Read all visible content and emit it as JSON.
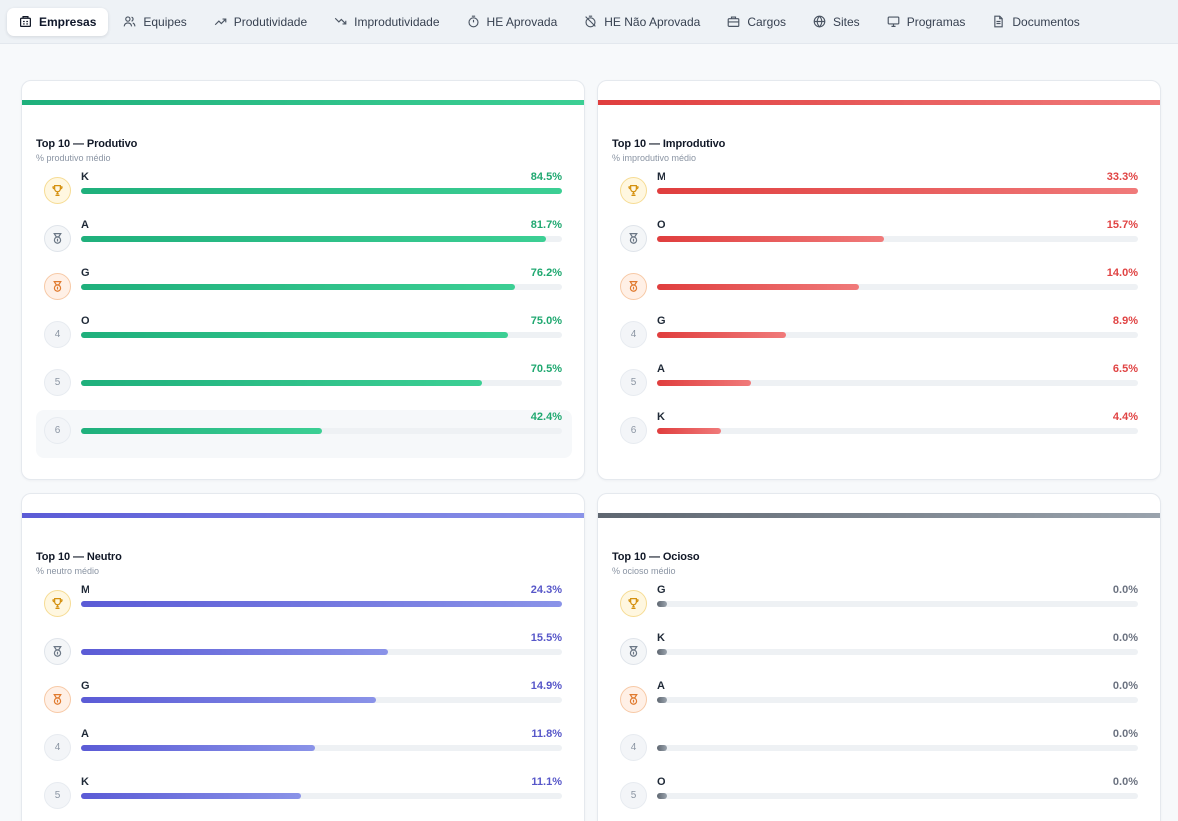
{
  "tabs": [
    {
      "label": "Empresas",
      "icon": "building-icon",
      "active": true
    },
    {
      "label": "Equipes",
      "icon": "users-icon"
    },
    {
      "label": "Produtividade",
      "icon": "trend-up-icon"
    },
    {
      "label": "Improdutividade",
      "icon": "trend-down-icon"
    },
    {
      "label": "HE Aprovada",
      "icon": "stopwatch-icon"
    },
    {
      "label": "HE Não Aprovada",
      "icon": "timer-off-icon"
    },
    {
      "label": "Cargos",
      "icon": "briefcase-icon"
    },
    {
      "label": "Sites",
      "icon": "globe-icon"
    },
    {
      "label": "Programas",
      "icon": "monitor-icon"
    },
    {
      "label": "Documentos",
      "icon": "document-icon"
    }
  ],
  "cards": [
    {
      "id": "produtivo",
      "title": "Top 10 — Produtivo",
      "subtitle": "% produtivo médio",
      "colors": {
        "from": "#1fb07c",
        "to": "#3ccf94",
        "text": "#1fa870"
      },
      "rows": [
        {
          "rank": 1,
          "medal": "gold",
          "name": "K",
          "pct_label": "84.5%",
          "value": 84.5
        },
        {
          "rank": 2,
          "medal": "silver",
          "name": "A",
          "pct_label": "81.7%",
          "value": 81.7
        },
        {
          "rank": 3,
          "medal": "bronze",
          "name": "G",
          "pct_label": "76.2%",
          "value": 76.2
        },
        {
          "rank": 4,
          "rank_label": "4",
          "name": "O",
          "pct_label": "75.0%",
          "value": 75.0
        },
        {
          "rank": 5,
          "rank_label": "5",
          "name": "",
          "pct_label": "70.5%",
          "value": 70.5
        },
        {
          "rank": 6,
          "rank_label": "6",
          "name": "",
          "pct_label": "42.4%",
          "value": 42.4,
          "highlight": true
        }
      ]
    },
    {
      "id": "improdutivo",
      "title": "Top 10 — Improdutivo",
      "subtitle": "% improdutivo médio",
      "colors": {
        "from": "#e03e3e",
        "to": "#f07a7a",
        "text": "#e04343"
      },
      "rows": [
        {
          "rank": 1,
          "medal": "gold",
          "name": "M",
          "pct_label": "33.3%",
          "value": 33.3
        },
        {
          "rank": 2,
          "medal": "silver",
          "name": "O",
          "pct_label": "15.7%",
          "value": 15.7
        },
        {
          "rank": 3,
          "medal": "bronze",
          "name": "",
          "pct_label": "14.0%",
          "value": 14.0
        },
        {
          "rank": 4,
          "rank_label": "4",
          "name": "G",
          "pct_label": "8.9%",
          "value": 8.9
        },
        {
          "rank": 5,
          "rank_label": "5",
          "name": "A",
          "pct_label": "6.5%",
          "value": 6.5
        },
        {
          "rank": 6,
          "rank_label": "6",
          "name": "K",
          "pct_label": "4.4%",
          "value": 4.4
        }
      ]
    },
    {
      "id": "neutro",
      "title": "Top 10 — Neutro",
      "subtitle": "% neutro médio",
      "colors": {
        "from": "#5b5bd6",
        "to": "#8a93e8",
        "text": "#5757c9"
      },
      "rows": [
        {
          "rank": 1,
          "medal": "gold",
          "name": "M",
          "pct_label": "24.3%",
          "value": 24.3
        },
        {
          "rank": 2,
          "medal": "silver",
          "name": "",
          "pct_label": "15.5%",
          "value": 15.5
        },
        {
          "rank": 3,
          "medal": "bronze",
          "name": "G",
          "pct_label": "14.9%",
          "value": 14.9
        },
        {
          "rank": 4,
          "rank_label": "4",
          "name": "A",
          "pct_label": "11.8%",
          "value": 11.8
        },
        {
          "rank": 5,
          "rank_label": "5",
          "name": "K",
          "pct_label": "11.1%",
          "value": 11.1
        }
      ]
    },
    {
      "id": "ocioso",
      "title": "Top 10 — Ocioso",
      "subtitle": "% ocioso médio",
      "colors": {
        "from": "#5e6670",
        "to": "#9aa3ad",
        "text": "#6b7280"
      },
      "rows": [
        {
          "rank": 1,
          "medal": "gold",
          "name": "G",
          "pct_label": "0.0%",
          "value": 0.0
        },
        {
          "rank": 2,
          "medal": "silver",
          "name": "K",
          "pct_label": "0.0%",
          "value": 0.0
        },
        {
          "rank": 3,
          "medal": "bronze",
          "name": "A",
          "pct_label": "0.0%",
          "value": 0.0
        },
        {
          "rank": 4,
          "rank_label": "4",
          "name": "",
          "pct_label": "0.0%",
          "value": 0.0
        },
        {
          "rank": 5,
          "rank_label": "5",
          "name": "O",
          "pct_label": "0.0%",
          "value": 0.0
        }
      ]
    }
  ]
}
